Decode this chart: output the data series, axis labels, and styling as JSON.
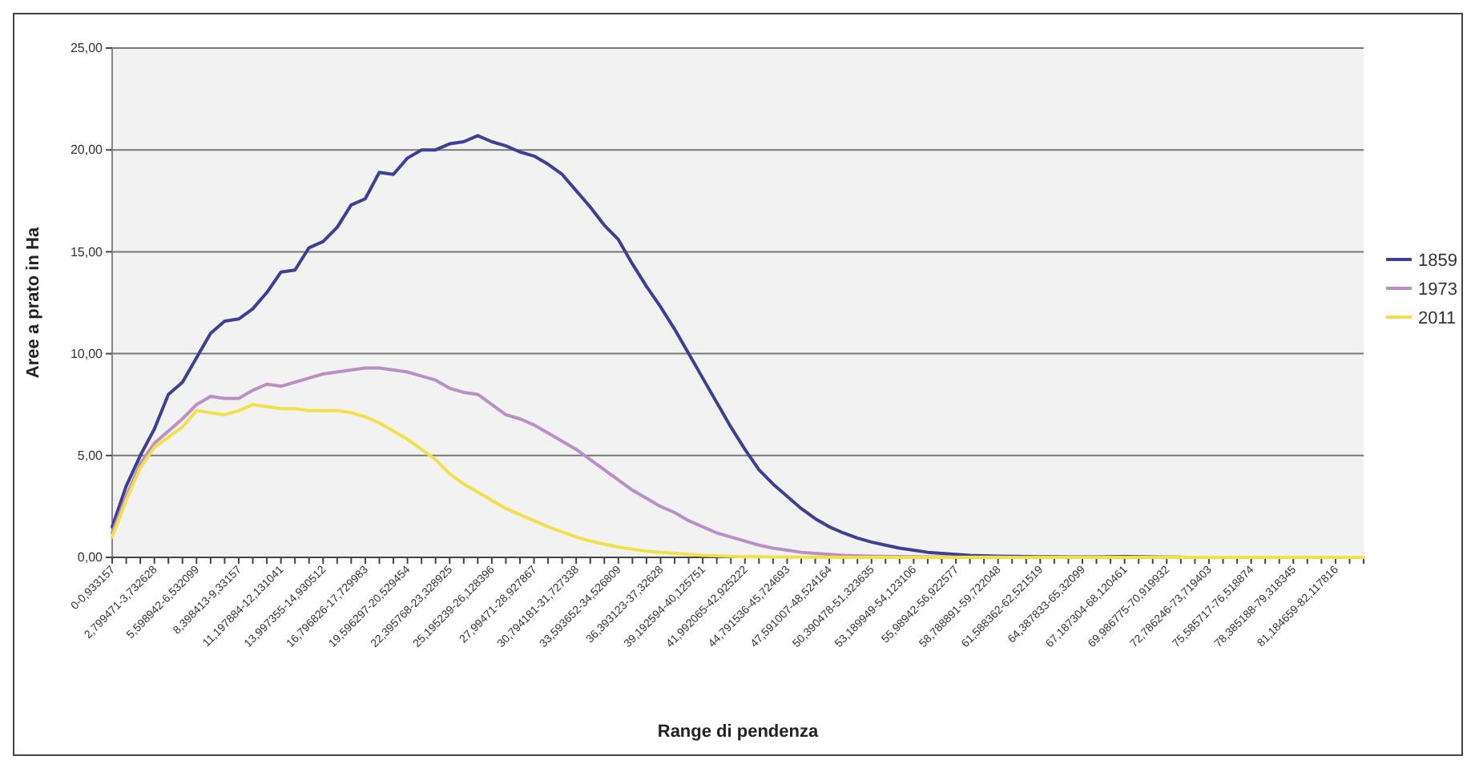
{
  "chart_data": {
    "type": "line",
    "xlabel": "Range di pendenza",
    "ylabel": "Aree a prato in Ha",
    "categories": [
      "0-0,933157",
      null,
      null,
      "2,799471-3,732628",
      null,
      null,
      "5,598942-6,532099",
      null,
      null,
      "8,398413-9,33157",
      null,
      null,
      "11,197884-12,131041",
      null,
      null,
      "13,997355-14,930512",
      null,
      null,
      "16,796826-17,729983",
      null,
      null,
      "19,596297-20,529454",
      null,
      null,
      "22,395768-23,328925",
      null,
      null,
      "25,195239-26,128396",
      null,
      null,
      "27,99471-28,927867",
      null,
      null,
      "30,794181-31,727338",
      null,
      null,
      "33,593652-34,526809",
      null,
      null,
      "36,393123-37,32628",
      null,
      null,
      "39,192594-40,125751",
      null,
      null,
      "41,992065-42,925222",
      null,
      null,
      "44,791536-45,724693",
      null,
      null,
      "47,591007-48,524164",
      null,
      null,
      "50,390478-51,323635",
      null,
      null,
      "53,189949-54,123106",
      null,
      null,
      "55,98942-56,922577",
      null,
      null,
      "58,788891-59,722048",
      null,
      null,
      "61,588362-62,521519",
      null,
      null,
      "64,387833-65,32099",
      null,
      null,
      "67,187304-68,120461",
      null,
      null,
      "69,986775-70,919932",
      null,
      null,
      "72,786246-73,719403",
      null,
      null,
      "75,585717-76,518874",
      null,
      null,
      "78,385188-79,318345",
      null,
      null,
      "81,184659-82,117816",
      null,
      null
    ],
    "series": [
      {
        "name": "1859",
        "color": "#3c3f94",
        "values": [
          1.5,
          3.5,
          5.0,
          6.3,
          8.0,
          8.6,
          9.8,
          11.0,
          11.6,
          11.7,
          12.2,
          13.0,
          14.0,
          14.1,
          15.2,
          15.5,
          16.2,
          17.3,
          17.6,
          18.9,
          18.8,
          19.6,
          20.0,
          20.0,
          20.3,
          20.4,
          20.7,
          20.4,
          20.2,
          19.9,
          19.7,
          19.3,
          18.8,
          18.0,
          17.2,
          16.3,
          15.6,
          14.4,
          13.3,
          12.3,
          11.2,
          10.0,
          8.8,
          7.6,
          6.4,
          5.3,
          4.3,
          3.6,
          3.0,
          2.4,
          1.9,
          1.5,
          1.2,
          0.95,
          0.75,
          0.6,
          0.45,
          0.35,
          0.25,
          0.2,
          0.15,
          0.1,
          0.08,
          0.06,
          0.05,
          0.04,
          0.03,
          0.03,
          0.02,
          0.02,
          0.02,
          0.03,
          0.04,
          0.03,
          0.02,
          0.01,
          0.01,
          null,
          null,
          null,
          null,
          null,
          null,
          null,
          null,
          null,
          null,
          null,
          null,
          null
        ]
      },
      {
        "name": "1973",
        "color": "#b98fc6",
        "values": [
          1.2,
          3.0,
          4.6,
          5.6,
          6.2,
          6.8,
          7.5,
          7.9,
          7.8,
          7.8,
          8.2,
          8.5,
          8.4,
          8.6,
          8.8,
          9.0,
          9.1,
          9.2,
          9.3,
          9.3,
          9.2,
          9.1,
          8.9,
          8.7,
          8.3,
          8.1,
          8.0,
          7.5,
          7.0,
          6.8,
          6.5,
          6.1,
          5.7,
          5.3,
          4.8,
          4.3,
          3.8,
          3.3,
          2.9,
          2.5,
          2.2,
          1.8,
          1.5,
          1.2,
          1.0,
          0.8,
          0.6,
          0.45,
          0.35,
          0.25,
          0.2,
          0.15,
          0.1,
          0.08,
          0.06,
          0.05,
          0.04,
          0.03,
          0.02,
          0.02,
          0.01,
          0.01,
          0.01,
          0.01,
          0,
          0,
          0,
          0,
          0,
          0,
          0,
          0,
          0,
          0,
          0,
          0,
          0,
          0,
          0,
          0,
          0,
          0,
          0,
          0,
          0,
          0,
          0,
          0,
          0,
          0
        ]
      },
      {
        "name": "2011",
        "color": "#f2e04a",
        "values": [
          1.0,
          2.8,
          4.4,
          5.4,
          5.9,
          6.4,
          7.2,
          7.1,
          7.0,
          7.2,
          7.5,
          7.4,
          7.3,
          7.3,
          7.2,
          7.2,
          7.2,
          7.1,
          6.9,
          6.6,
          6.2,
          5.8,
          5.3,
          4.8,
          4.1,
          3.6,
          3.2,
          2.8,
          2.4,
          2.1,
          1.8,
          1.5,
          1.25,
          1.0,
          0.8,
          0.65,
          0.5,
          0.4,
          0.3,
          0.25,
          0.2,
          0.15,
          0.1,
          0.08,
          0.05,
          0.03,
          0.03,
          0.02,
          0.02,
          0.01,
          0.01,
          0.01,
          0,
          0,
          0,
          0,
          0,
          0,
          0,
          0,
          0,
          0,
          0,
          0,
          0,
          0,
          0,
          0,
          0,
          0,
          0,
          0,
          0,
          0,
          0,
          0,
          0,
          0,
          0,
          0,
          0,
          0,
          0,
          0,
          0,
          0,
          0,
          0,
          0,
          0
        ]
      }
    ],
    "ylim": [
      0,
      25
    ],
    "yticks": [
      {
        "value": 0,
        "label": "0,00"
      },
      {
        "value": 5,
        "label": "5,00"
      },
      {
        "value": 10,
        "label": "10,00"
      },
      {
        "value": 15,
        "label": "15,00"
      },
      {
        "value": 20,
        "label": "20,00"
      },
      {
        "value": 25,
        "label": "25,00"
      }
    ],
    "grid": "y",
    "legend": "right",
    "marker": "none",
    "line_style": "solid"
  }
}
